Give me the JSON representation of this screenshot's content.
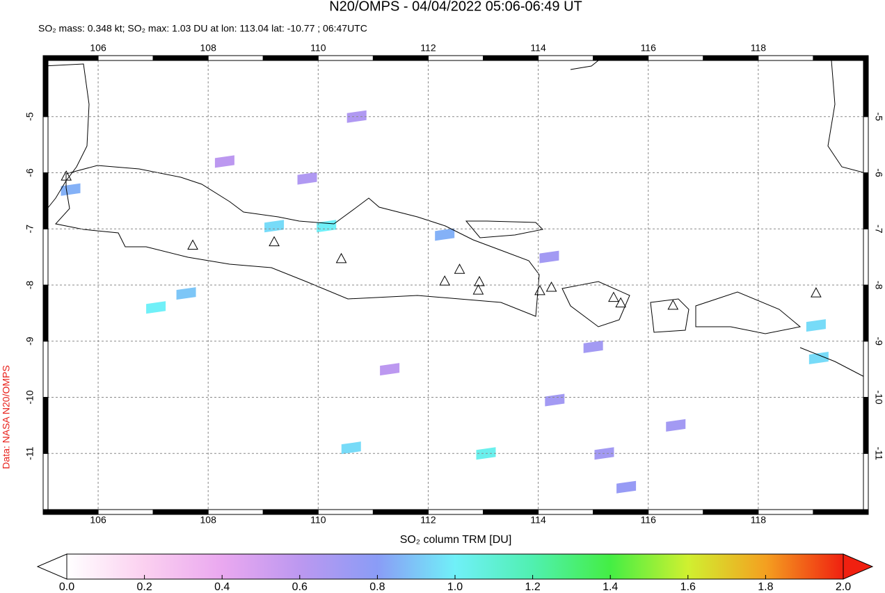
{
  "chart_data": {
    "type": "map",
    "title": "N20/OMPS - 04/04/2022 05:06-06:49 UT",
    "subtitle": "SO₂ mass: 0.348 kt; SO₂ max: 1.03 DU at lon: 113.04 lat: -10.77 ; 06:47UTC",
    "credit": "Data: NASA N20/OMPS",
    "colorbar_label": "SO₂ column TRM [DU]",
    "xlim": [
      105,
      120
    ],
    "ylim": [
      -12,
      -4
    ],
    "xticks": [
      106,
      108,
      110,
      112,
      114,
      116,
      118
    ],
    "yticks": [
      -5,
      -6,
      -7,
      -8,
      -9,
      -10,
      -11
    ],
    "grid": true,
    "clim": [
      0,
      2
    ],
    "colormap": [
      "#ffffff",
      "#fbd0f0",
      "#eaa8f0",
      "#bc98f0",
      "#8a9cf6",
      "#70f0f8",
      "#50f0b0",
      "#44ee44",
      "#d0f030",
      "#f4a020",
      "#f02010"
    ],
    "cbticks": [
      {
        "value": 0,
        "label": "0.0"
      },
      0.2,
      0.4,
      0.6,
      0.8,
      {
        "value": 1,
        "label": "1.0"
      },
      1.2,
      1.4,
      1.6,
      1.8,
      {
        "value": 2,
        "label": "2.0"
      }
    ],
    "volcanoes": {
      "lon": [
        105.42,
        107.72,
        109.2,
        110.42,
        112.3,
        112.57,
        112.93,
        112.91,
        114.03,
        114.24,
        115.37,
        115.5,
        116.45,
        119.05
      ],
      "lat": [
        -6.07,
        -7.3,
        -7.24,
        -7.54,
        -7.94,
        -7.73,
        -7.95,
        -8.1,
        -8.11,
        -8.05,
        -8.23,
        -8.33,
        -8.37,
        -8.15
      ]
    },
    "cells": {
      "lon": [
        109.2,
        110.15,
        112.3,
        107.6,
        107.05,
        113.05,
        110.6,
        119.05,
        119.1,
        114.2,
        115.0,
        116.5,
        110.7,
        109.8,
        114.3,
        115.2,
        115.6,
        105.5,
        111.3,
        108.3
      ],
      "lat": [
        -6.95,
        -6.95,
        -7.1,
        -8.15,
        -8.4,
        -11.0,
        -10.9,
        -8.72,
        -9.3,
        -7.5,
        -9.1,
        -10.5,
        -5.0,
        -6.1,
        -10.05,
        -11.0,
        -11.6,
        -6.3,
        -9.5,
        -5.8
      ],
      "values": [
        0.95,
        1.0,
        0.85,
        0.9,
        1.0,
        1.03,
        0.95,
        0.95,
        0.95,
        0.7,
        0.7,
        0.7,
        0.65,
        0.65,
        0.7,
        0.7,
        0.75,
        0.85,
        0.6,
        0.6
      ]
    }
  }
}
